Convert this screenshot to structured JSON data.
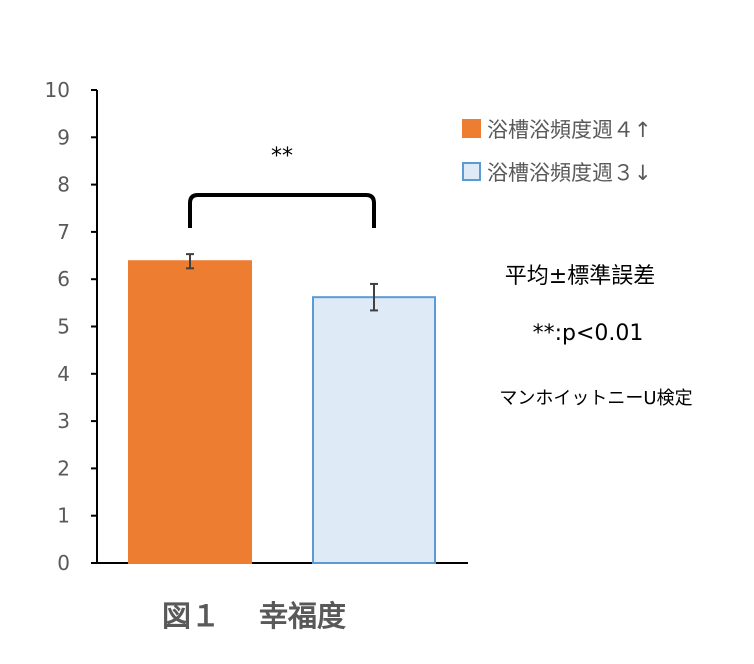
{
  "chart_data": {
    "type": "bar",
    "categories": [
      "浴槽浴頻度週４↑",
      "浴槽浴頻度週３↓"
    ],
    "series": [
      {
        "name": "浴槽浴頻度週４↑",
        "value": 6.38,
        "error": 0.15,
        "color": "#ED7D31",
        "border": "#ED7D31"
      },
      {
        "name": "浴槽浴頻度週３↓",
        "value": 5.62,
        "error": 0.28,
        "color": "#DEEBF7",
        "border": "#5B9BD5"
      }
    ],
    "ylim": [
      0,
      10
    ],
    "yticks": [
      "0",
      "1",
      "2",
      "3",
      "4",
      "5",
      "6",
      "7",
      "8",
      "9",
      "10"
    ],
    "grid": false,
    "legend_position": "top-right",
    "significance": "**",
    "caption": "図１　 幸福度",
    "notes": [
      "平均±標準誤差",
      "**:p<0.01",
      "マンホイットニーU検定"
    ]
  }
}
